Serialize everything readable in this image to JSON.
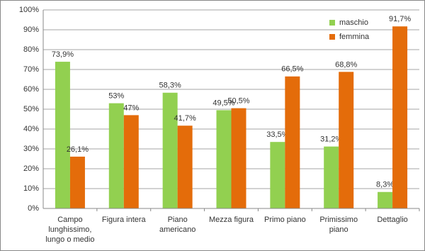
{
  "chart_data": {
    "type": "bar",
    "categories": [
      "Campo\nlunghissimo,\nlungo o medio",
      "Figura intera",
      "Piano\namericano",
      "Mezza figura",
      "Primo piano",
      "Primissimo\npiano",
      "Dettaglio"
    ],
    "series": [
      {
        "name": "maschio",
        "color": "#92d050",
        "values": [
          73.9,
          53,
          58.3,
          49.5,
          33.5,
          31.2,
          8.3
        ],
        "value_labels": [
          "73,9%",
          "53%",
          "58,3%",
          "49,5%",
          "33,5%",
          "31,2%",
          "8,3%"
        ]
      },
      {
        "name": "femmina",
        "color": "#e46c0a",
        "values": [
          26.1,
          47,
          41.7,
          50.5,
          66.5,
          68.8,
          91.7
        ],
        "value_labels": [
          "26,1%",
          "47%",
          "41,7%",
          "50,5%",
          "66,5%",
          "68,8%",
          "91,7%"
        ]
      }
    ],
    "ylim": [
      0,
      100
    ],
    "yticks": [
      {
        "value": 0,
        "label": "0%"
      },
      {
        "value": 10,
        "label": "10%"
      },
      {
        "value": 20,
        "label": "20%"
      },
      {
        "value": 30,
        "label": "30%"
      },
      {
        "value": 40,
        "label": "40%"
      },
      {
        "value": 50,
        "label": "50%"
      },
      {
        "value": 60,
        "label": "60%"
      },
      {
        "value": 70,
        "label": "70%"
      },
      {
        "value": 80,
        "label": "80%"
      },
      {
        "value": 90,
        "label": "90%"
      },
      {
        "value": 100,
        "label": "100%"
      }
    ],
    "grid": true,
    "legend": "top-right"
  }
}
